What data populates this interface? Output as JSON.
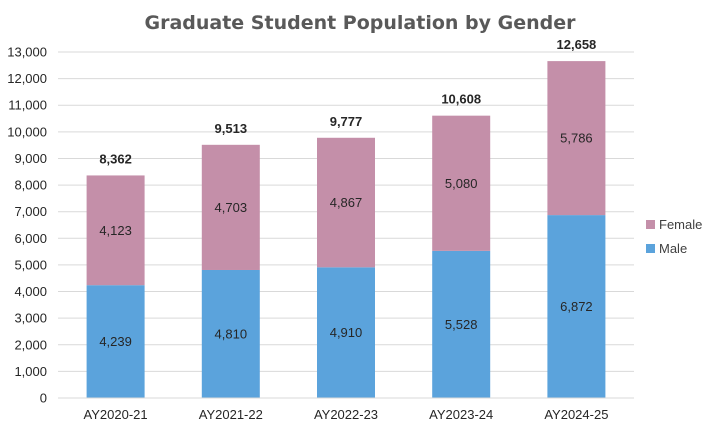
{
  "chart_data": {
    "type": "bar",
    "stacked": true,
    "title": "Graduate Student Population by Gender",
    "xlabel": "",
    "ylabel": "",
    "categories": [
      "AY2020-21",
      "AY2021-22",
      "AY2022-23",
      "AY2023-24",
      "AY2024-25"
    ],
    "series": [
      {
        "name": "Male",
        "color": "#5ba3dc",
        "values": [
          4239,
          4810,
          4910,
          5528,
          6872
        ],
        "labels": [
          "4,239",
          "4,810",
          "4,910",
          "5,528",
          "6,872"
        ]
      },
      {
        "name": "Female",
        "color": "#c48fa9",
        "values": [
          4123,
          4703,
          4867,
          5080,
          5786
        ],
        "labels": [
          "4,123",
          "4,703",
          "4,867",
          "5,080",
          "5,786"
        ]
      }
    ],
    "totals": [
      8362,
      9513,
      9777,
      10608,
      12658
    ],
    "total_labels": [
      "8,362",
      "9,513",
      "9,777",
      "10,608",
      "12,658"
    ],
    "ylim": [
      0,
      13000
    ],
    "yticks": [
      0,
      1000,
      2000,
      3000,
      4000,
      5000,
      6000,
      7000,
      8000,
      9000,
      10000,
      11000,
      12000,
      13000
    ],
    "ytick_labels": [
      "0",
      "1,000",
      "2,000",
      "3,000",
      "4,000",
      "5,000",
      "6,000",
      "7,000",
      "8,000",
      "9,000",
      "10,000",
      "11,000",
      "12,000",
      "13,000"
    ],
    "grid": true,
    "legend": {
      "placement": "right",
      "entries": [
        "Female",
        "Male"
      ]
    }
  }
}
